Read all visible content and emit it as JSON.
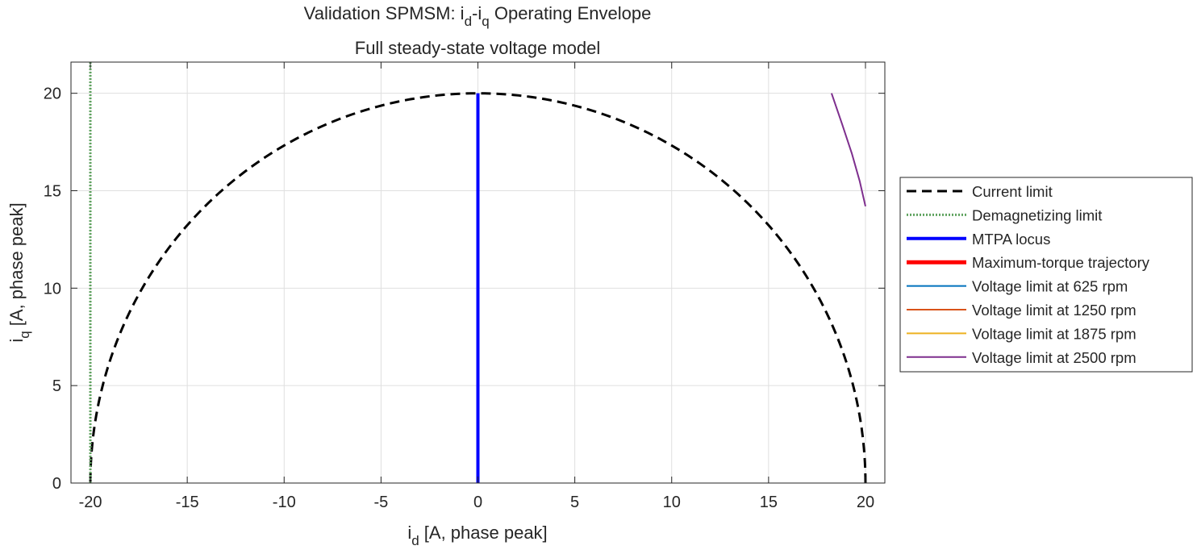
{
  "chart_data": {
    "type": "line",
    "title": {
      "parts": [
        {
          "t": "Validation SPMSM: i"
        },
        {
          "t": "d",
          "sub": true
        },
        {
          "t": "-i"
        },
        {
          "t": "q",
          "sub": true
        },
        {
          "t": " Operating Envelope"
        }
      ]
    },
    "subtitle": "Full steady-state voltage model",
    "xlabel": {
      "base": "i",
      "sub": "d",
      "rest": " [A, phase peak]"
    },
    "ylabel": {
      "base": "i",
      "sub": "q",
      "rest": " [A, phase peak]"
    },
    "xlim": [
      -21,
      21
    ],
    "ylim": [
      0,
      21.6
    ],
    "xticks": [
      -20,
      -15,
      -10,
      -5,
      0,
      5,
      10,
      15,
      20
    ],
    "yticks": [
      0,
      5,
      10,
      15,
      20
    ],
    "grid": true,
    "legend_position": "outside-right",
    "series": [
      {
        "name": "Current limit",
        "color": "#000000",
        "style": "dashed",
        "width": 3,
        "kind": "circle",
        "radius": 20
      },
      {
        "name": "Demagnetizing limit",
        "color": "#5fa35f",
        "style": "dotted",
        "width": 3,
        "x": [
          -20,
          -20
        ],
        "y": [
          0,
          21.6
        ]
      },
      {
        "name": "MTPA locus",
        "color": "#0000ff",
        "style": "solid",
        "width": 4,
        "x": [
          0,
          0
        ],
        "y": [
          0,
          20
        ]
      },
      {
        "name": "Maximum-torque trajectory",
        "color": "#ff0000",
        "style": "solid",
        "width": 5,
        "x": [],
        "y": []
      },
      {
        "name": "Voltage limit at 625 rpm",
        "color": "#0072bd",
        "style": "solid",
        "width": 2,
        "x": [],
        "y": []
      },
      {
        "name": "Voltage limit at 1250 rpm",
        "color": "#d95319",
        "style": "solid",
        "width": 2,
        "x": [],
        "y": []
      },
      {
        "name": "Voltage limit at 1875 rpm",
        "color": "#edb120",
        "style": "solid",
        "width": 2,
        "x": [],
        "y": []
      },
      {
        "name": "Voltage limit at 2500 rpm",
        "color": "#7e2f8e",
        "style": "solid",
        "width": 2,
        "x": [
          18.25,
          18.8,
          19.3,
          19.7,
          20.0
        ],
        "y": [
          20.0,
          18.4,
          16.9,
          15.5,
          14.2
        ]
      }
    ]
  }
}
